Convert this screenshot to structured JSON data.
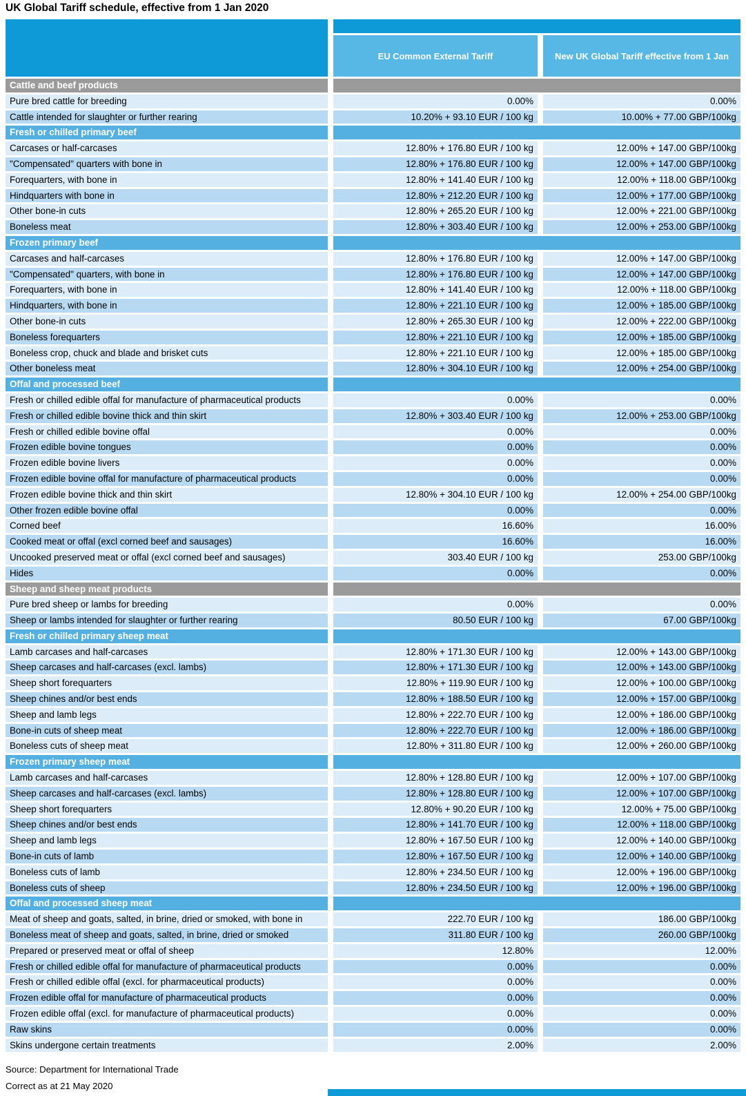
{
  "title": "UK Global Tariff schedule, effective from 1 Jan 2020",
  "colors": {
    "header_dark_blue": "#0E9AD7",
    "header_cell_blue": "#57B7E5",
    "section_blue": "#53B0E1",
    "section_gray": "#9B9B9B",
    "row_light": "#DCEDF9",
    "row_dark": "#B7DAF2"
  },
  "chart_data": {
    "type": "table",
    "columns": [
      "",
      "EU Common External Tariff",
      "New UK Global Tariff effective from 1 Jan"
    ],
    "sections": [
      {
        "label": "Cattle and beef products",
        "style": "gray",
        "rows": [
          [
            "Pure bred cattle for breeding",
            "0.00%",
            "0.00%"
          ],
          [
            "Cattle intended for slaughter or further rearing",
            "10.20% + 93.10 EUR / 100 kg",
            "10.00% + 77.00 GBP/100kg"
          ]
        ]
      },
      {
        "label": "Fresh or chilled primary beef",
        "style": "blue",
        "rows": [
          [
            "Carcases or half-carcases",
            "12.80% + 176.80 EUR / 100 kg",
            "12.00% + 147.00 GBP/100kg"
          ],
          [
            "\"Compensated\" quarters with bone in",
            "12.80% + 176.80 EUR / 100 kg",
            "12.00% + 147.00 GBP/100kg"
          ],
          [
            "Forequarters, with bone in",
            "12.80% + 141.40 EUR / 100 kg",
            "12.00% + 118.00 GBP/100kg"
          ],
          [
            "Hindquarters with bone in",
            "12.80% + 212.20 EUR / 100 kg",
            "12.00% + 177.00 GBP/100kg"
          ],
          [
            "Other bone-in cuts",
            "12.80% + 265.20 EUR / 100 kg",
            "12.00% + 221.00 GBP/100kg"
          ],
          [
            "Boneless meat",
            "12.80% + 303.40 EUR / 100 kg",
            "12.00% + 253.00 GBP/100kg"
          ]
        ]
      },
      {
        "label": "Frozen primary beef",
        "style": "blue",
        "rows": [
          [
            "Carcases and half-carcases",
            "12.80% + 176.80 EUR / 100 kg",
            "12.00% + 147.00 GBP/100kg"
          ],
          [
            "\"Compensated\" quarters, with bone in",
            "12.80% + 176.80 EUR / 100 kg",
            "12.00% + 147.00 GBP/100kg"
          ],
          [
            "Forequarters, with bone in",
            "12.80% + 141.40 EUR / 100 kg",
            "12.00% + 118.00 GBP/100kg"
          ],
          [
            "Hindquarters, with bone in",
            "12.80% + 221.10 EUR / 100 kg",
            "12.00% + 185.00 GBP/100kg"
          ],
          [
            "Other bone-in cuts",
            "12.80% + 265.30 EUR / 100 kg",
            "12.00% + 222.00 GBP/100kg"
          ],
          [
            "Boneless forequarters",
            "12.80% + 221.10 EUR / 100 kg",
            "12.00% + 185.00 GBP/100kg"
          ],
          [
            "Boneless crop, chuck and blade and brisket cuts",
            "12.80% + 221.10 EUR / 100 kg",
            "12.00% + 185.00 GBP/100kg"
          ],
          [
            "Other boneless meat",
            "12.80% + 304.10 EUR / 100 kg",
            "12.00% + 254.00 GBP/100kg"
          ]
        ]
      },
      {
        "label": "Offal and processed beef",
        "style": "blue",
        "rows": [
          [
            "Fresh or chilled edible offal for manufacture of pharmaceutical products",
            "0.00%",
            "0.00%"
          ],
          [
            "Fresh or chilled edible bovine thick and thin skirt",
            "12.80% + 303.40 EUR / 100 kg",
            "12.00% + 253.00 GBP/100kg"
          ],
          [
            "Fresh or chilled edible bovine offal",
            "0.00%",
            "0.00%"
          ],
          [
            "Frozen edible bovine tongues",
            "0.00%",
            "0.00%"
          ],
          [
            "Frozen edible bovine livers",
            "0.00%",
            "0.00%"
          ],
          [
            "Frozen edible bovine offal for manufacture of pharmaceutical products",
            "0.00%",
            "0.00%"
          ],
          [
            "Frozen edible bovine thick and thin skirt",
            "12.80% + 304.10 EUR / 100 kg",
            "12.00% + 254.00 GBP/100kg"
          ],
          [
            "Other frozen edible bovine offal",
            "0.00%",
            "0.00%"
          ],
          [
            "Corned beef",
            "16.60%",
            "16.00%"
          ],
          [
            "Cooked meat or offal (excl corned beef and sausages)",
            "16.60%",
            "16.00%"
          ],
          [
            "Uncooked preserved meat or offal (excl corned beef and sausages)",
            "303.40 EUR / 100 kg",
            "253.00 GBP/100kg"
          ],
          [
            "Hides",
            "0.00%",
            "0.00%"
          ]
        ]
      },
      {
        "label": "Sheep and sheep meat products",
        "style": "gray",
        "rows": [
          [
            "Pure bred sheep or lambs for breeding",
            "0.00%",
            "0.00%"
          ],
          [
            "Sheep or lambs intended for slaughter or further rearing",
            "80.50 EUR / 100 kg",
            "67.00 GBP/100kg"
          ]
        ]
      },
      {
        "label": "Fresh or chilled primary sheep meat",
        "style": "blue",
        "rows": [
          [
            "Lamb carcases and half-carcases",
            "12.80% + 171.30 EUR / 100 kg",
            "12.00% + 143.00 GBP/100kg"
          ],
          [
            "Sheep carcases and half-carcases (excl. lambs)",
            "12.80% + 171.30 EUR / 100 kg",
            "12.00% + 143.00 GBP/100kg"
          ],
          [
            "Sheep short forequarters",
            "12.80% + 119.90 EUR / 100 kg",
            "12.00% + 100.00 GBP/100kg"
          ],
          [
            "Sheep chines and/or best ends",
            "12.80% + 188.50 EUR / 100 kg",
            "12.00% + 157.00 GBP/100kg"
          ],
          [
            "Sheep and lamb legs",
            "12.80% + 222.70 EUR / 100 kg",
            "12.00% + 186.00 GBP/100kg"
          ],
          [
            "Bone-in cuts of sheep meat",
            "12.80% + 222.70 EUR / 100 kg",
            "12.00% + 186.00 GBP/100kg"
          ],
          [
            "Boneless cuts of sheep meat",
            "12.80% + 311.80 EUR / 100 kg",
            "12.00% + 260.00 GBP/100kg"
          ]
        ]
      },
      {
        "label": "Frozen primary sheep meat",
        "style": "blue",
        "rows": [
          [
            "Lamb carcases and half-carcases",
            "12.80% + 128.80 EUR / 100 kg",
            "12.00% + 107.00 GBP/100kg"
          ],
          [
            "Sheep carcases and half-carcases (excl. lambs)",
            "12.80% + 128.80 EUR / 100 kg",
            "12.00% + 107.00 GBP/100kg"
          ],
          [
            "Sheep short forequarters",
            "12.80% + 90.20 EUR / 100 kg",
            "12.00% + 75.00 GBP/100kg"
          ],
          [
            "Sheep chines and/or best ends",
            "12.80% + 141.70 EUR / 100 kg",
            "12.00% + 118.00 GBP/100kg"
          ],
          [
            "Sheep and lamb legs",
            "12.80% + 167.50 EUR / 100 kg",
            "12.00% + 140.00 GBP/100kg"
          ],
          [
            "Bone-in cuts of lamb",
            "12.80% + 167.50 EUR / 100 kg",
            "12.00% + 140.00 GBP/100kg"
          ],
          [
            "Boneless cuts of lamb",
            "12.80% + 234.50 EUR / 100 kg",
            "12.00% + 196.00 GBP/100kg"
          ],
          [
            "Boneless cuts of sheep",
            "12.80% + 234.50 EUR / 100 kg",
            "12.00% + 196.00 GBP/100kg"
          ]
        ]
      },
      {
        "label": "Offal and processed sheep meat",
        "style": "blue",
        "rows": [
          [
            "Meat of sheep and goats, salted, in brine, dried or smoked, with bone in",
            "222.70 EUR / 100 kg",
            "186.00 GBP/100kg"
          ],
          [
            "Boneless meat of sheep and goats, salted, in brine, dried or smoked",
            "311.80 EUR / 100 kg",
            "260.00 GBP/100kg"
          ],
          [
            "Prepared or preserved meat or offal of sheep",
            "12.80%",
            "12.00%"
          ],
          [
            "Fresh or chilled edible offal for manufacture of pharmaceutical products",
            "0.00%",
            "0.00%"
          ],
          [
            "Fresh or chilled edible offal (excl. for pharmaceutical products)",
            "0.00%",
            "0.00%"
          ],
          [
            "Frozen edible offal for manufacture of pharmaceutical products",
            "0.00%",
            "0.00%"
          ],
          [
            "Frozen edible offal (excl. for manufacture of pharmaceutical products)",
            "0.00%",
            "0.00%"
          ],
          [
            "Raw skins",
            "0.00%",
            "0.00%"
          ],
          [
            "Skins undergone certain treatments",
            "2.00%",
            "2.00%"
          ]
        ]
      }
    ]
  },
  "footer": {
    "source_line": "Source: Department for International Trade",
    "date_line": "Correct as at 21 May 2020"
  }
}
